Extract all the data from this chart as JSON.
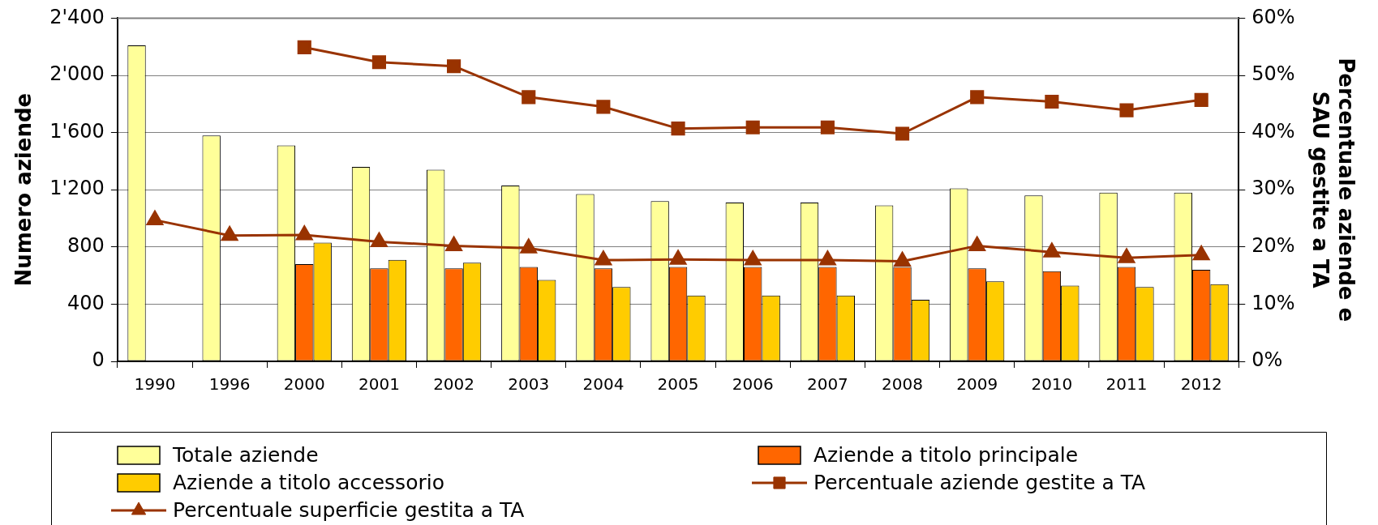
{
  "chart_data": {
    "type": "bar",
    "categories": [
      "1990",
      "1996",
      "2000",
      "2001",
      "2002",
      "2003",
      "2004",
      "2005",
      "2006",
      "2007",
      "2008",
      "2009",
      "2010",
      "2011",
      "2012"
    ],
    "ylabel": "Numero aziende",
    "y2label": "Percentuale aziende e\nSAU gestite a TA",
    "ylim": [
      0,
      2400
    ],
    "yticks": [
      0,
      400,
      800,
      {
        "value": 1200,
        "label": "1'200"
      },
      {
        "value": 1600,
        "label": "1'600"
      },
      {
        "value": 2000,
        "label": "2'000"
      },
      {
        "value": 2400,
        "label": "2'400"
      }
    ],
    "y2lim": [
      0,
      60
    ],
    "y2ticks": [
      {
        "value": 0,
        "label": "0%"
      },
      {
        "value": 10,
        "label": "10%"
      },
      {
        "value": 20,
        "label": "20%"
      },
      {
        "value": 30,
        "label": "30%"
      },
      {
        "value": 40,
        "label": "40%"
      },
      {
        "value": 50,
        "label": "50%"
      },
      {
        "value": 60,
        "label": "60%"
      }
    ],
    "grid": "y",
    "legend": "bottom",
    "series": [
      {
        "name": "Totale aziende",
        "color": "#ffff99",
        "values": [
          2210,
          1580,
          1510,
          1360,
          1340,
          1230,
          1170,
          1120,
          1110,
          1110,
          1090,
          1210,
          1160,
          1180,
          1180
        ]
      },
      {
        "name": "Aziende a titolo principale",
        "color": "#ff6600",
        "values": [
          null,
          null,
          680,
          650,
          650,
          660,
          650,
          660,
          660,
          660,
          660,
          650,
          630,
          660,
          640
        ]
      },
      {
        "name": "Aziende a titolo accessorio",
        "color": "#ffcc00",
        "values": [
          null,
          null,
          830,
          710,
          690,
          570,
          520,
          460,
          460,
          460,
          430,
          560,
          530,
          520,
          540
        ]
      },
      {
        "name": "Percentuale aziende gestite a TA",
        "type": "line",
        "axis": "y2",
        "marker": "square",
        "color": "#993300",
        "values": [
          null,
          null,
          54.9,
          52.3,
          51.6,
          46.2,
          44.5,
          40.7,
          40.9,
          40.9,
          39.8,
          46.2,
          45.4,
          43.9,
          45.7
        ]
      },
      {
        "name": "Percentuale superficie gestita a TA",
        "type": "line",
        "axis": "y2",
        "marker": "triangle",
        "color": "#993300",
        "values": [
          24.7,
          22.0,
          22.1,
          20.9,
          20.2,
          19.8,
          17.7,
          17.8,
          17.7,
          17.7,
          17.5,
          20.2,
          19.1,
          18.1,
          18.6
        ]
      }
    ]
  }
}
